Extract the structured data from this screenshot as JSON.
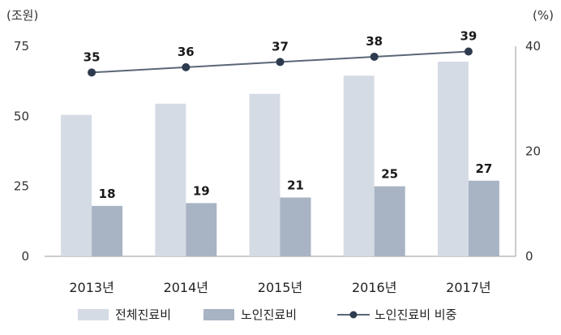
{
  "chart_data": {
    "type": "bar",
    "categories": [
      "2013년",
      "2014년",
      "2015년",
      "2016년",
      "2017년"
    ],
    "left_axis": {
      "unit": "(조원)",
      "ylim": [
        0,
        75
      ],
      "ticks": [
        0,
        25,
        50,
        75
      ]
    },
    "right_axis": {
      "unit": "(%)",
      "ylim": [
        0,
        40
      ],
      "ticks": [
        0,
        20,
        40
      ]
    },
    "series": [
      {
        "name": "전체진료비",
        "type": "bar",
        "axis": "left",
        "values": [
          50.5,
          54.5,
          58,
          64.5,
          69.5
        ],
        "show_labels": false,
        "color": "#d5dbe5"
      },
      {
        "name": "노인진료비",
        "type": "bar",
        "axis": "left",
        "values": [
          18,
          19,
          21,
          25,
          27
        ],
        "show_labels": true,
        "color": "#a8b3c4"
      },
      {
        "name": "노인진료비 비중",
        "type": "line",
        "axis": "right",
        "values": [
          35,
          36,
          37,
          38,
          39
        ],
        "show_labels": true,
        "color": "#2e3b4e"
      }
    ],
    "grid": false,
    "legend_position": "bottom"
  }
}
